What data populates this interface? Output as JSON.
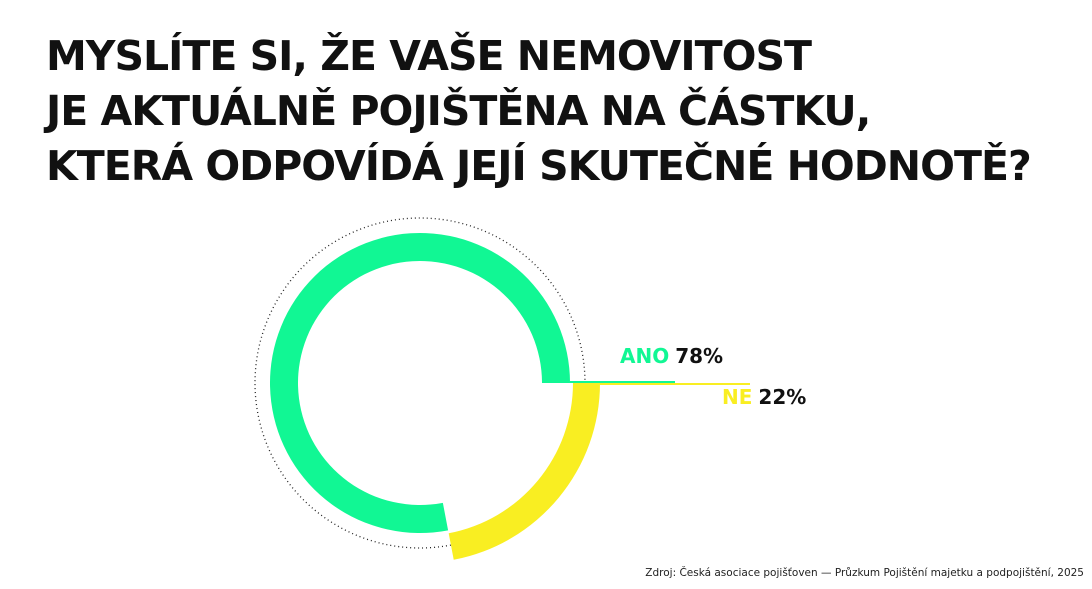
{
  "chart_data": {
    "type": "pie",
    "title": [
      "MYSLÍTE SI, ŽE VAŠE NEMOVITOST",
      "JE AKTUÁLNĚ POJIŠTĚNA NA ČÁSTKU,",
      "KTERÁ ODPOVÍDÁ JEJÍ SKUTEČNÉ HODNOTĚ?"
    ],
    "categories": [
      "ANO",
      "NE"
    ],
    "values": [
      78,
      22
    ],
    "value_labels": [
      "78%",
      "22%"
    ],
    "colors": [
      "#11f794",
      "#f9ee22"
    ],
    "source": "Zdroj: Česká asociace pojišťoven — Průzkum Pojištění majetku a podpojištění, 2025"
  }
}
